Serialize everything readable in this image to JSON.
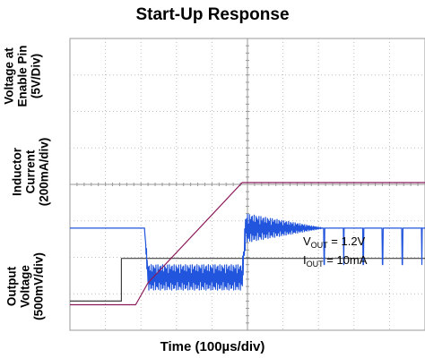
{
  "chart_data": {
    "type": "line",
    "title": "Start-Up Response",
    "xlabel": "Time (100µs/div)",
    "ylabels": [
      {
        "lines": [
          "Voltage at",
          "Enable Pin",
          "(5V/Div)"
        ]
      },
      {
        "lines": [
          "Inductor",
          "Current",
          "(200mA/div)"
        ]
      },
      {
        "lines": [
          "Output",
          "Voltage",
          "(500mV/div)"
        ]
      }
    ],
    "x_divisions": 10,
    "y_divisions": 8,
    "grid": true,
    "annotations": [
      {
        "name": "V",
        "sub": "OUT",
        "text": " = 1.2V"
      },
      {
        "name": "I",
        "sub": "OUT",
        "text": " = 10mA"
      }
    ],
    "series": [
      {
        "color": "#404040",
        "x_div": [
          0,
          1.45,
          1.45,
          10
        ],
        "y_div": [
          0.8,
          0.8,
          1.97,
          1.97
        ]
      },
      {
        "color": "#2255dd",
        "x_div": [
          0,
          2.1,
          2.2,
          4.85,
          4.95,
          7.15,
          10
        ],
        "y_div": [
          2.8,
          2.8,
          1.45,
          1.45,
          2.8,
          2.8,
          2.8
        ],
        "ripple_div": [
          0,
          0,
          0.35,
          0.35,
          0.4,
          0,
          0
        ]
      },
      {
        "color": "#8b1a5a",
        "x_div": [
          0,
          1.85,
          2.2,
          4.85,
          10
        ],
        "y_div": [
          0.7,
          0.7,
          1.3,
          4.05,
          4.05
        ]
      }
    ]
  }
}
